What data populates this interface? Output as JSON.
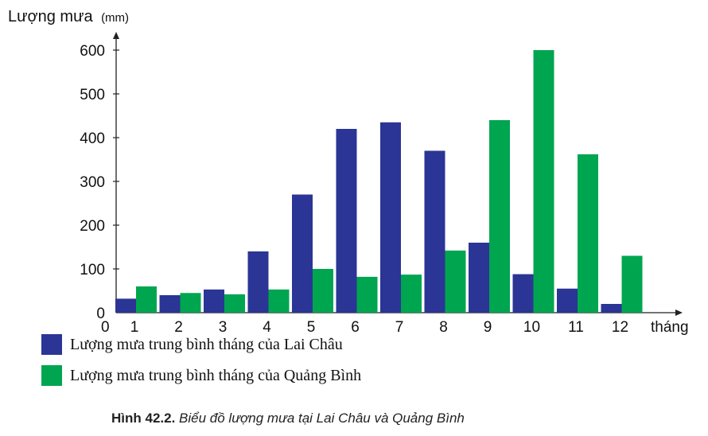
{
  "chart_data": {
    "type": "bar",
    "ylabel": "Lượng mưa",
    "yunit": "(mm)",
    "xlabel": "tháng",
    "origin_label": "0",
    "categories": [
      "1",
      "2",
      "3",
      "4",
      "5",
      "6",
      "7",
      "8",
      "9",
      "10",
      "11",
      "12"
    ],
    "yticks": [
      0,
      100,
      200,
      300,
      400,
      500,
      600
    ],
    "ylim": [
      0,
      600
    ],
    "series": [
      {
        "name": "Lượng mưa trung bình tháng của Lai Châu",
        "color": "#2b3595",
        "values": [
          32,
          40,
          53,
          140,
          270,
          420,
          435,
          370,
          160,
          88,
          55,
          20
        ]
      },
      {
        "name": "Lượng mưa trung bình tháng của Quảng Bình",
        "color": "#00a550",
        "values": [
          60,
          45,
          42,
          53,
          100,
          82,
          87,
          142,
          440,
          600,
          362,
          130
        ]
      }
    ],
    "legend_position": "bottom-left"
  },
  "caption": {
    "label": "Hình 42.2.",
    "text": "Biểu đồ lượng mưa tại Lai Châu và Quảng Bình"
  }
}
